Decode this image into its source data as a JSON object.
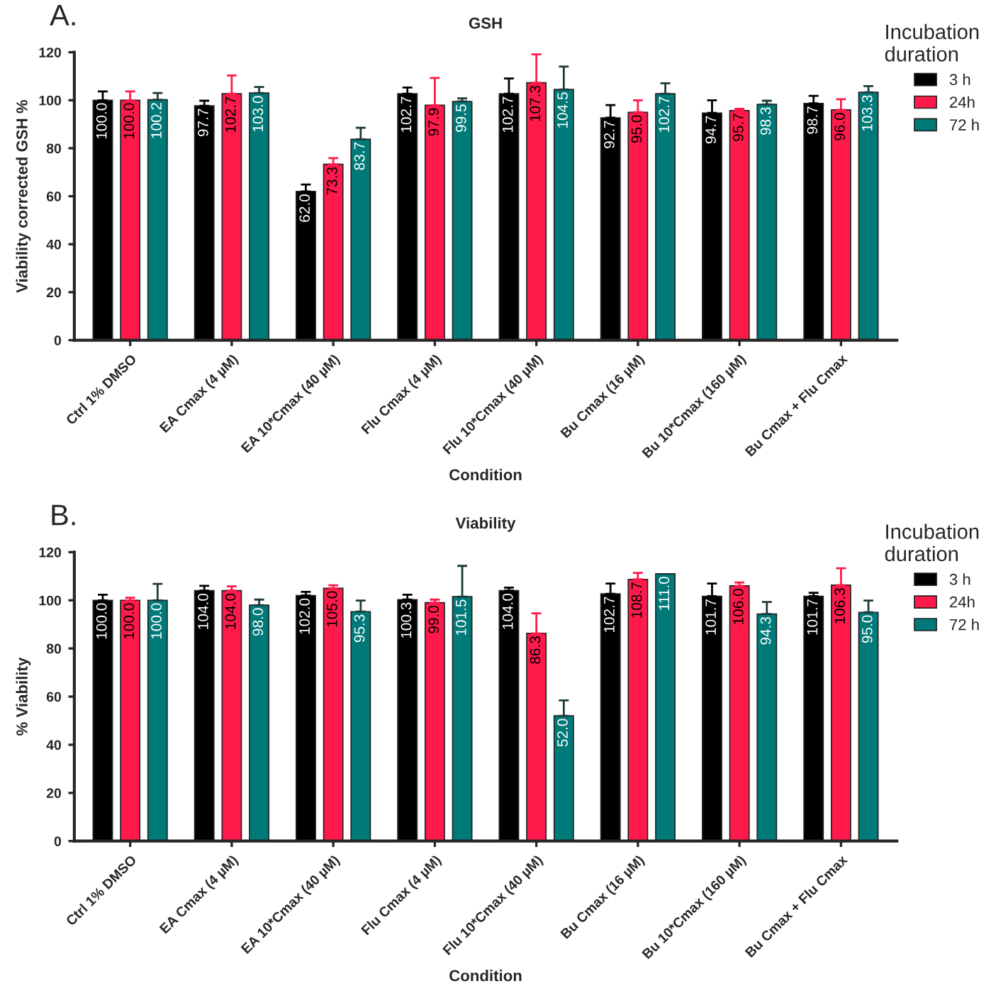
{
  "chart_data": [
    {
      "type": "bar",
      "title": "GSH",
      "annotations": [
        "A."
      ],
      "xlabel": "Condition",
      "ylabel": "Viability corrected GSH %",
      "legend_title": "Incubation\nduration",
      "legend": "right",
      "grid": false,
      "ylim": [
        0,
        120
      ],
      "yticks": [
        0,
        20,
        40,
        60,
        80,
        100,
        120
      ],
      "categories": [
        "Ctrl 1% DMSO",
        "EA Cmax (4 µM)",
        "EA 10*Cmax (40 µM)",
        "Flu Cmax (4 µM)",
        "Flu 10*Cmax (40 µM)",
        "Bu Cmax (16 µM)",
        "Bu 10*Cmax (160 µM)",
        "Bu Cmax + Flu Cmax"
      ],
      "series": [
        {
          "name": "3 h",
          "color": "#000000",
          "values": [
            100.0,
            97.7,
            62.0,
            102.7,
            102.7,
            92.7,
            94.7,
            98.7
          ],
          "value_labels": [
            "100.0",
            "97.7",
            "62.0",
            "102.7",
            "102.7",
            "92.7",
            "94.7",
            "98.7"
          ],
          "errors": [
            [
              100.0,
              103.7
            ],
            [
              97.7,
              99.8
            ],
            [
              62.0,
              64.9
            ],
            [
              102.7,
              105.3
            ],
            [
              102.7,
              109.1
            ],
            [
              92.7,
              98.0
            ],
            [
              94.7,
              100.0
            ],
            [
              98.7,
              101.8
            ]
          ]
        },
        {
          "name": "24h",
          "color": "#ff1a4b",
          "values": [
            100.0,
            102.7,
            73.3,
            97.9,
            107.3,
            95.0,
            95.7,
            96.0
          ],
          "value_labels": [
            "100.0",
            "102.7",
            "73.3",
            "97.9",
            "107.3",
            "95.0",
            "95.7",
            "96.0"
          ],
          "errors": [
            [
              100.0,
              103.7
            ],
            [
              102.7,
              110.3
            ],
            [
              73.3,
              75.9
            ],
            [
              97.9,
              109.3
            ],
            [
              107.3,
              119.1
            ],
            [
              95.0,
              100.0
            ],
            [
              95.7,
              96.4
            ],
            [
              96.0,
              100.4
            ]
          ]
        },
        {
          "name": "72 h",
          "color": "#007a78",
          "values": [
            100.2,
            103.0,
            83.7,
            99.5,
            104.5,
            102.7,
            98.3,
            103.3
          ],
          "value_labels": [
            "100.2",
            "103.0",
            "83.7",
            "99.5",
            "104.5",
            "102.7",
            "98.3",
            "103.3"
          ],
          "errors": [
            [
              100.2,
              103.0
            ],
            [
              103.0,
              105.5
            ],
            [
              83.7,
              88.5
            ],
            [
              99.5,
              100.8
            ],
            [
              104.5,
              114.0
            ],
            [
              102.7,
              107.1
            ],
            [
              98.3,
              99.8
            ],
            [
              103.3,
              105.9
            ]
          ]
        }
      ]
    },
    {
      "type": "bar",
      "title": "Viability",
      "annotations": [
        "B."
      ],
      "xlabel": "Condition",
      "ylabel": "% Viability",
      "legend_title": "Incubation\nduration",
      "legend": "right",
      "grid": false,
      "ylim": [
        0,
        120
      ],
      "yticks": [
        0,
        20,
        40,
        60,
        80,
        100,
        120
      ],
      "categories": [
        "Ctrl 1% DMSO",
        "EA Cmax (4 µM)",
        "EA 10*Cmax (40 µM)",
        "Flu Cmax (4 µM)",
        "Flu 10*Cmax (40 µM)",
        "Bu Cmax (16 µM)",
        "Bu 10*Cmax (160 µM)",
        "Bu Cmax + Flu Cmax"
      ],
      "series": [
        {
          "name": "3 h",
          "color": "#000000",
          "values": [
            100.0,
            104.0,
            102.0,
            100.3,
            104.0,
            102.7,
            101.7,
            101.7
          ],
          "value_labels": [
            "100.0",
            "104.0",
            "102.0",
            "100.3",
            "104.0",
            "102.7",
            "101.7",
            "101.7"
          ],
          "errors": [
            [
              100.0,
              102.3
            ],
            [
              104.0,
              106.0
            ],
            [
              102.0,
              103.5
            ],
            [
              100.3,
              102.3
            ],
            [
              104.0,
              105.3
            ],
            [
              102.7,
              107.0
            ],
            [
              101.7,
              107.0
            ],
            [
              101.7,
              103.1
            ]
          ]
        },
        {
          "name": "24h",
          "color": "#ff1a4b",
          "values": [
            100.0,
            104.0,
            105.0,
            99.0,
            86.3,
            108.7,
            106.0,
            106.3
          ],
          "value_labels": [
            "100.0",
            "104.0",
            "105.0",
            "99.0",
            "86.3",
            "108.7",
            "106.0",
            "106.3"
          ],
          "errors": [
            [
              100.0,
              101.1
            ],
            [
              104.0,
              105.8
            ],
            [
              105.0,
              106.2
            ],
            [
              99.0,
              100.3
            ],
            [
              86.3,
              94.6
            ],
            [
              108.7,
              111.4
            ],
            [
              106.0,
              107.4
            ],
            [
              106.3,
              113.3
            ]
          ]
        },
        {
          "name": "72 h",
          "color": "#007a78",
          "values": [
            100.0,
            98.0,
            95.3,
            101.5,
            52.0,
            111.0,
            94.3,
            95.0
          ],
          "value_labels": [
            "100.0",
            "98.0",
            "95.3",
            "101.5",
            "52.0",
            "111.0",
            "94.3",
            "95.0"
          ],
          "errors": [
            [
              100.0,
              106.8
            ],
            [
              98.0,
              100.3
            ],
            [
              95.3,
              99.9
            ],
            [
              101.5,
              114.3
            ],
            [
              52.0,
              58.4
            ],
            null,
            [
              94.3,
              99.3
            ],
            [
              95.0,
              99.9
            ]
          ]
        }
      ]
    }
  ]
}
